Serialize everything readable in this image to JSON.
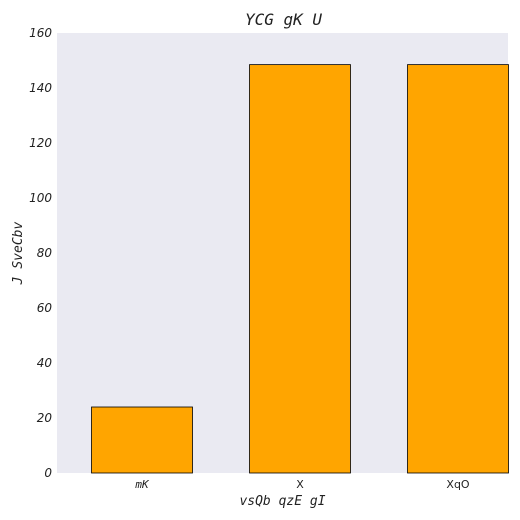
{
  "chart_data": {
    "type": "bar",
    "title": "YCG gK U",
    "xlabel": "vsQb qzE gI",
    "ylabel": "J SveCbv",
    "categories": [
      "mK",
      "X",
      "XqO"
    ],
    "values": [
      24,
      148.5,
      148.5
    ],
    "ylim": [
      0,
      160
    ],
    "yticks": [
      0,
      20,
      40,
      60,
      80,
      100,
      120,
      140,
      160
    ],
    "grid": false,
    "colors": {
      "bar": "#FFA500",
      "bar_edge": "#000000",
      "plot_bg": "#EAEAF2"
    }
  }
}
